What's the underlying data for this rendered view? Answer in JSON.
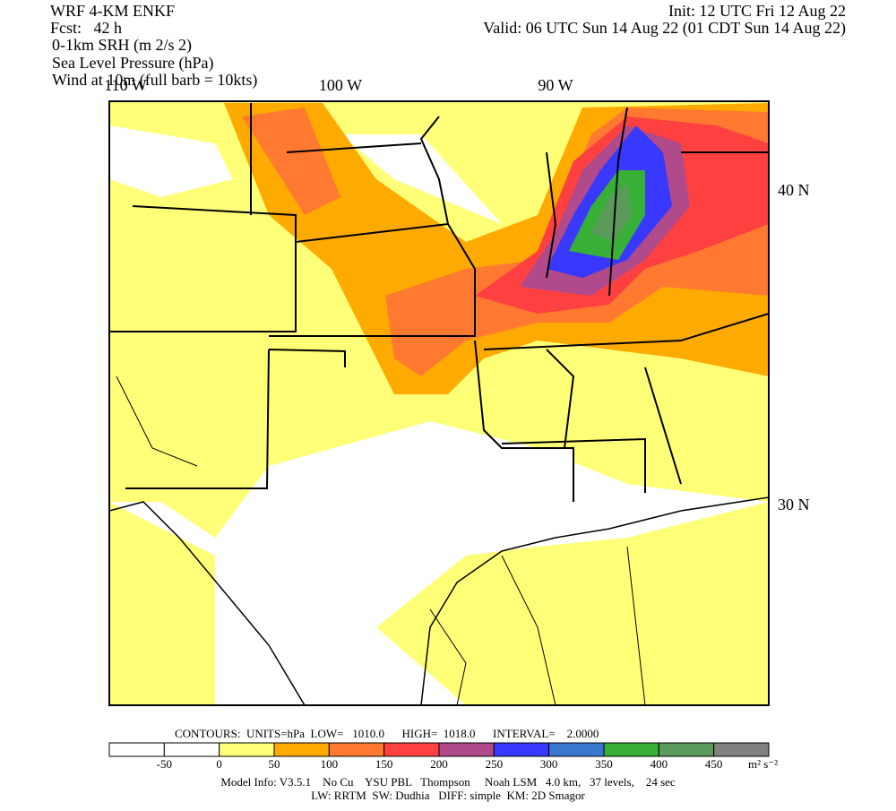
{
  "header": {
    "lines": [
      "WRF 4-KM ENKF",
      "Fcst:   42 h",
      "0-1km SRH (m 2/s 2)",
      "Sea Level Pressure (hPa)",
      "Wind at 10m (full barb = 10kts)"
    ],
    "init": "Init: 12 UTC Fri 12 Aug 22",
    "valid": "Valid: 06 UTC Sun 14 Aug 22 (01 CDT Sun 14 Aug 22)"
  },
  "map": {
    "lon_labels": [
      "110 W",
      "100 W",
      "90 W"
    ],
    "lat_labels": [
      "40 N",
      "30 N"
    ]
  },
  "contours": "CONTOURS:  UNITS=hPa  LOW=   1010.0      HIGH=  1018.0      INTERVAL=    2.0000",
  "colorbar": {
    "colors": [
      "#ffffff",
      "#ffffff",
      "#ffff78",
      "#ffaa00",
      "#ff7a30",
      "#ff4040",
      "#b04a8a",
      "#3838ff",
      "#3a78d0",
      "#38b038",
      "#5c9a5c",
      "#808080"
    ],
    "tick_labels": [
      "-50",
      "0",
      "50",
      "100",
      "150",
      "200",
      "250",
      "300",
      "350",
      "400",
      "450"
    ],
    "units": "m² s⁻²"
  },
  "footer": [
    "Model Info: V3.5.1    No Cu    YSU PBL   Thompson     Noah LSM   4.0 km,   37 levels,    24 sec",
    "LW: RRTM  SW: Dudhia   DIFF: simple  KM: 2D Smagor"
  ]
}
